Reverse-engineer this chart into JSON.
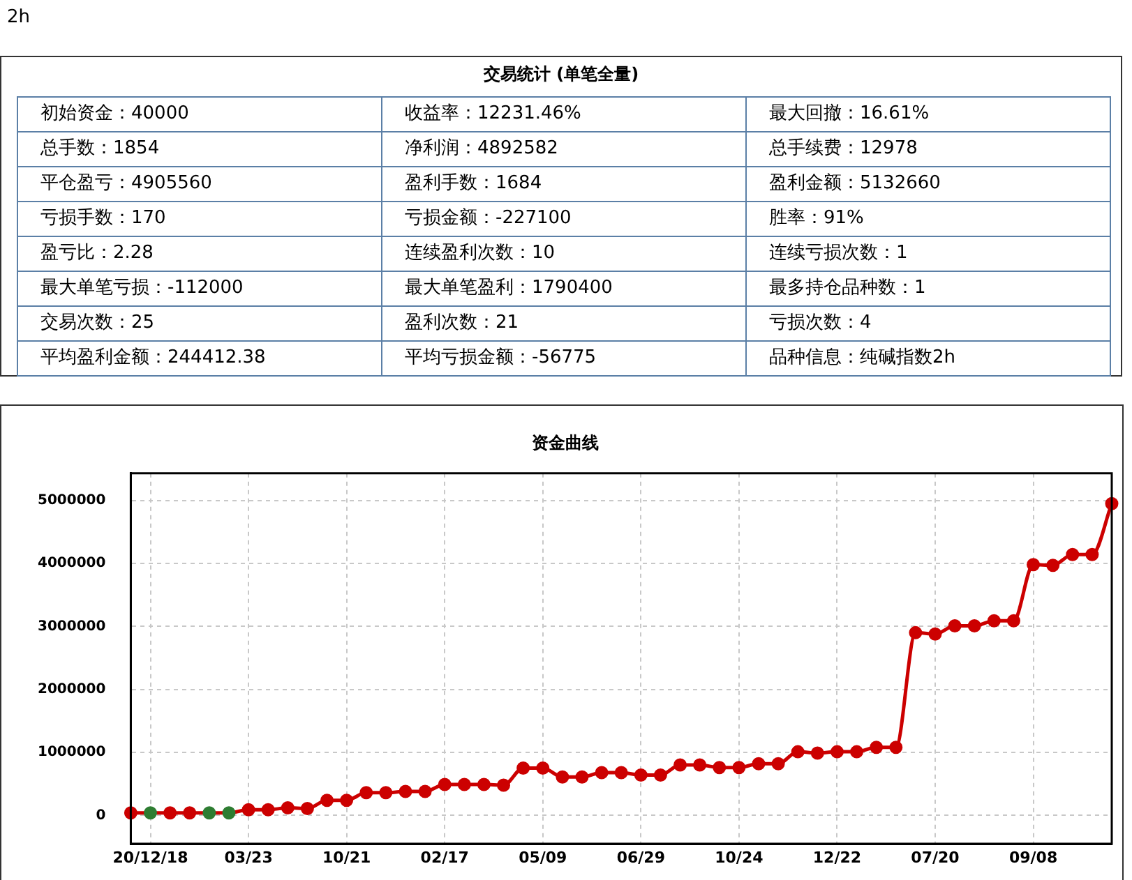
{
  "chart_data": [
    {
      "type": "other",
      "title": "交易统计 (单笔全量)",
      "subtitle": "2h",
      "annotations": [
        "初始资金：40000",
        "收益率：12231.46%",
        "最大回撤：16.61%",
        "总手数：1854",
        "净利润：4892582",
        "总手续费：12978",
        "平仓盈亏：4905560",
        "盈利手数：1684",
        "盈利金额：5132660",
        "亏损手数：170",
        "亏损金额：-227100",
        "胜率：91%",
        "盈亏比：2.28",
        "连续盈利次数：10",
        "连续亏损次数：1",
        "最大单笔亏损：-112000",
        "最大单笔盈利：1790400",
        "最多持仓品种数：1",
        "交易次数：25",
        "盈利次数：21",
        "亏损次数：4",
        "平均盈利金额：244412.38",
        "平均亏损金额：-56775",
        "品种信息：纯碱指数2h"
      ]
    },
    {
      "type": "line",
      "title": "资金曲线",
      "categories": [
        null,
        "20/12/18",
        null,
        null,
        null,
        null,
        "03/23",
        null,
        null,
        null,
        null,
        "10/21",
        null,
        null,
        null,
        null,
        "02/17",
        null,
        null,
        null,
        null,
        "05/09",
        null,
        null,
        null,
        null,
        "06/29",
        null,
        null,
        null,
        null,
        "10/24",
        null,
        null,
        null,
        null,
        "12/22",
        null,
        null,
        null,
        null,
        "07/20",
        null,
        null,
        null,
        null,
        "09/08",
        null,
        null,
        null,
        null
      ],
      "series": [
        {
          "color": "#cc0000",
          "values": [
            40000,
            40000,
            40000,
            40000,
            40000,
            40000,
            90000,
            90000,
            120000,
            110000,
            240000,
            240000,
            360000,
            360000,
            380000,
            380000,
            490000,
            490000,
            490000,
            480000,
            750000,
            750000,
            610000,
            610000,
            680000,
            680000,
            640000,
            640000,
            800000,
            800000,
            760000,
            760000,
            820000,
            820000,
            1010000,
            990000,
            1010000,
            1010000,
            1080000,
            1080000,
            2900000,
            2880000,
            3010000,
            3010000,
            3090000,
            3090000,
            3980000,
            3970000,
            4140000,
            4140000,
            4950000
          ],
          "colors": [
            "#cc0000",
            "#2e7d32",
            "#cc0000",
            "#cc0000",
            "#2e7d32",
            "#2e7d32",
            "#cc0000",
            "#cc0000",
            "#cc0000",
            "#cc0000",
            "#cc0000",
            "#cc0000",
            "#cc0000",
            "#cc0000",
            "#cc0000",
            "#cc0000",
            "#cc0000",
            "#cc0000",
            "#cc0000",
            "#cc0000",
            "#cc0000",
            "#cc0000",
            "#cc0000",
            "#cc0000",
            "#cc0000",
            "#cc0000",
            "#cc0000",
            "#cc0000",
            "#cc0000",
            "#cc0000",
            "#cc0000",
            "#cc0000",
            "#cc0000",
            "#cc0000",
            "#cc0000",
            "#cc0000",
            "#cc0000",
            "#cc0000",
            "#cc0000",
            "#cc0000",
            "#cc0000",
            "#cc0000",
            "#cc0000",
            "#cc0000",
            "#cc0000",
            "#cc0000",
            "#cc0000",
            "#cc0000",
            "#cc0000",
            "#cc0000",
            "#cc0000"
          ]
        }
      ],
      "ylim": [
        -450000,
        5430000
      ],
      "yticks": [
        0,
        1000000,
        2000000,
        3000000,
        4000000,
        5000000
      ],
      "grid": true,
      "legend": false,
      "marker": "circle",
      "line_style": "solid"
    }
  ]
}
